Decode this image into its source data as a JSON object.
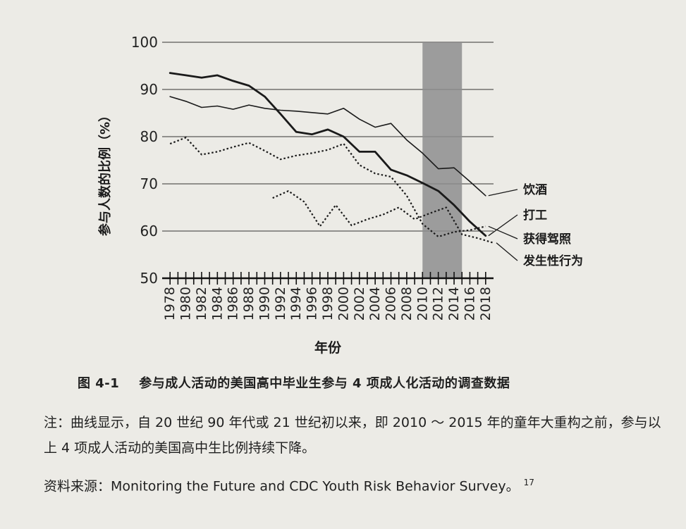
{
  "chart_data": {
    "type": "line",
    "ylabel": "参与人数的比例（%）",
    "xlabel": "年份",
    "ylim": [
      50,
      100
    ],
    "yticks": [
      "50",
      "60",
      "70",
      "80",
      "90",
      "100"
    ],
    "xlim": [
      1977,
      2019
    ],
    "xticks": [
      "1978",
      "1980",
      "1982",
      "1984",
      "1986",
      "1988",
      "1990",
      "1992",
      "1994",
      "1996",
      "1998",
      "2000",
      "2002",
      "2004",
      "2006",
      "2008",
      "2010",
      "2012",
      "2014",
      "2016",
      "2018"
    ],
    "shaded_region": [
      2010,
      2015
    ],
    "series": [
      {
        "name": "饮酒",
        "style": "solid-thin",
        "x": [
          1978,
          1980,
          1982,
          1984,
          1986,
          1988,
          1990,
          1992,
          1994,
          1996,
          1998,
          2000,
          2002,
          2004,
          2006,
          2008,
          2010,
          2012,
          2014,
          2016,
          2018
        ],
        "values": [
          88.5,
          87.5,
          86.2,
          86.5,
          85.8,
          86.7,
          86.0,
          85.6,
          85.4,
          85.1,
          84.8,
          86.0,
          83.7,
          82.0,
          82.8,
          79.3,
          76.5,
          73.2,
          73.4,
          70.5,
          67.5
        ]
      },
      {
        "name": "打工",
        "style": "solid-thick",
        "x": [
          1978,
          1980,
          1982,
          1984,
          1986,
          1988,
          1990,
          1992,
          1994,
          1996,
          1998,
          2000,
          2002,
          2004,
          2006,
          2008,
          2010,
          2012,
          2014,
          2016,
          2018
        ],
        "values": [
          93.5,
          93.0,
          92.5,
          93.0,
          91.8,
          90.8,
          88.5,
          84.8,
          81.0,
          80.5,
          81.5,
          80.0,
          76.8,
          76.8,
          73.0,
          71.8,
          70.2,
          68.5,
          65.5,
          62.0,
          59.0
        ]
      },
      {
        "name": "获得驾照",
        "style": "dotted",
        "x": [
          1978,
          1980,
          1982,
          1984,
          1986,
          1988,
          1990,
          1992,
          1994,
          1996,
          1998,
          2000,
          2002,
          2004,
          2006,
          2008,
          2010,
          2012,
          2014,
          2016,
          2018
        ],
        "values": [
          78.5,
          79.8,
          76.2,
          76.8,
          77.8,
          78.7,
          77.0,
          75.2,
          76.0,
          76.5,
          77.2,
          78.5,
          74.0,
          72.2,
          71.5,
          67.5,
          61.5,
          58.8,
          59.8,
          60.2,
          61.0
        ]
      },
      {
        "name": "发生性行为",
        "style": "dotted",
        "x": [
          1991,
          1993,
          1995,
          1997,
          1999,
          2001,
          2003,
          2005,
          2007,
          2009,
          2011,
          2013,
          2015,
          2017,
          2019
        ],
        "values": [
          67.0,
          68.5,
          66.2,
          61.0,
          65.5,
          61.2,
          62.5,
          63.5,
          65.0,
          62.5,
          63.8,
          65.0,
          59.3,
          58.5,
          57.5
        ]
      }
    ],
    "legend": [
      "饮酒",
      "打工",
      "获得驾照",
      "发生性行为"
    ]
  },
  "caption": {
    "figure_number": "图 4-1",
    "title": "参与成人活动的美国高中毕业生参与 4 项成人化活动的调查数据"
  },
  "note": "注：曲线显示，自 20 世纪 90 年代或 21 世纪初以来，即 2010 ～ 2015 年的童年大重构之前，参与以上 4 项成人活动的美国高中生比例持续下降。",
  "source": {
    "text": "资料来源：Monitoring the Future and CDC Youth Risk Behavior Survey。",
    "footnote": "17"
  }
}
